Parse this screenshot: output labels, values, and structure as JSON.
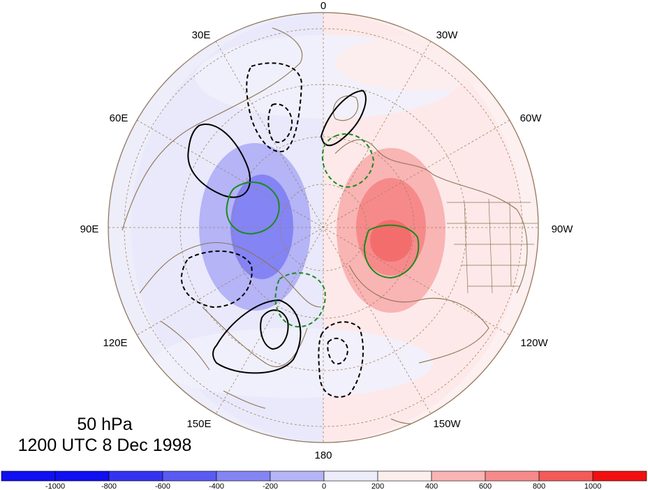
{
  "map": {
    "longitude_labels": [
      "0",
      "30W",
      "60W",
      "90W",
      "120W",
      "150W",
      "180",
      "150E",
      "120E",
      "90E",
      "60E",
      "30E"
    ],
    "caption": {
      "level": "50 hPa",
      "time": "1200 UTC 8 Dec 1998"
    }
  },
  "colorbar": {
    "labels": [
      "-1000",
      "-800",
      "-600",
      "-400",
      "-200",
      "0",
      "200",
      "400",
      "600",
      "800",
      "1000"
    ],
    "colors": [
      "#1010f0",
      "#3434f0",
      "#5a5af2",
      "#8484f4",
      "#b4b4f7",
      "#ececfb",
      "#fdeeee",
      "#f9b4b4",
      "#f68a8a",
      "#f35a5a",
      "#f01010"
    ]
  },
  "colors": {
    "positive_contour": "#000000",
    "negative_contour": "#000000",
    "green_contour": "#1b8a1b",
    "coastline": "#8b7355",
    "graticule": "#a08060"
  }
}
